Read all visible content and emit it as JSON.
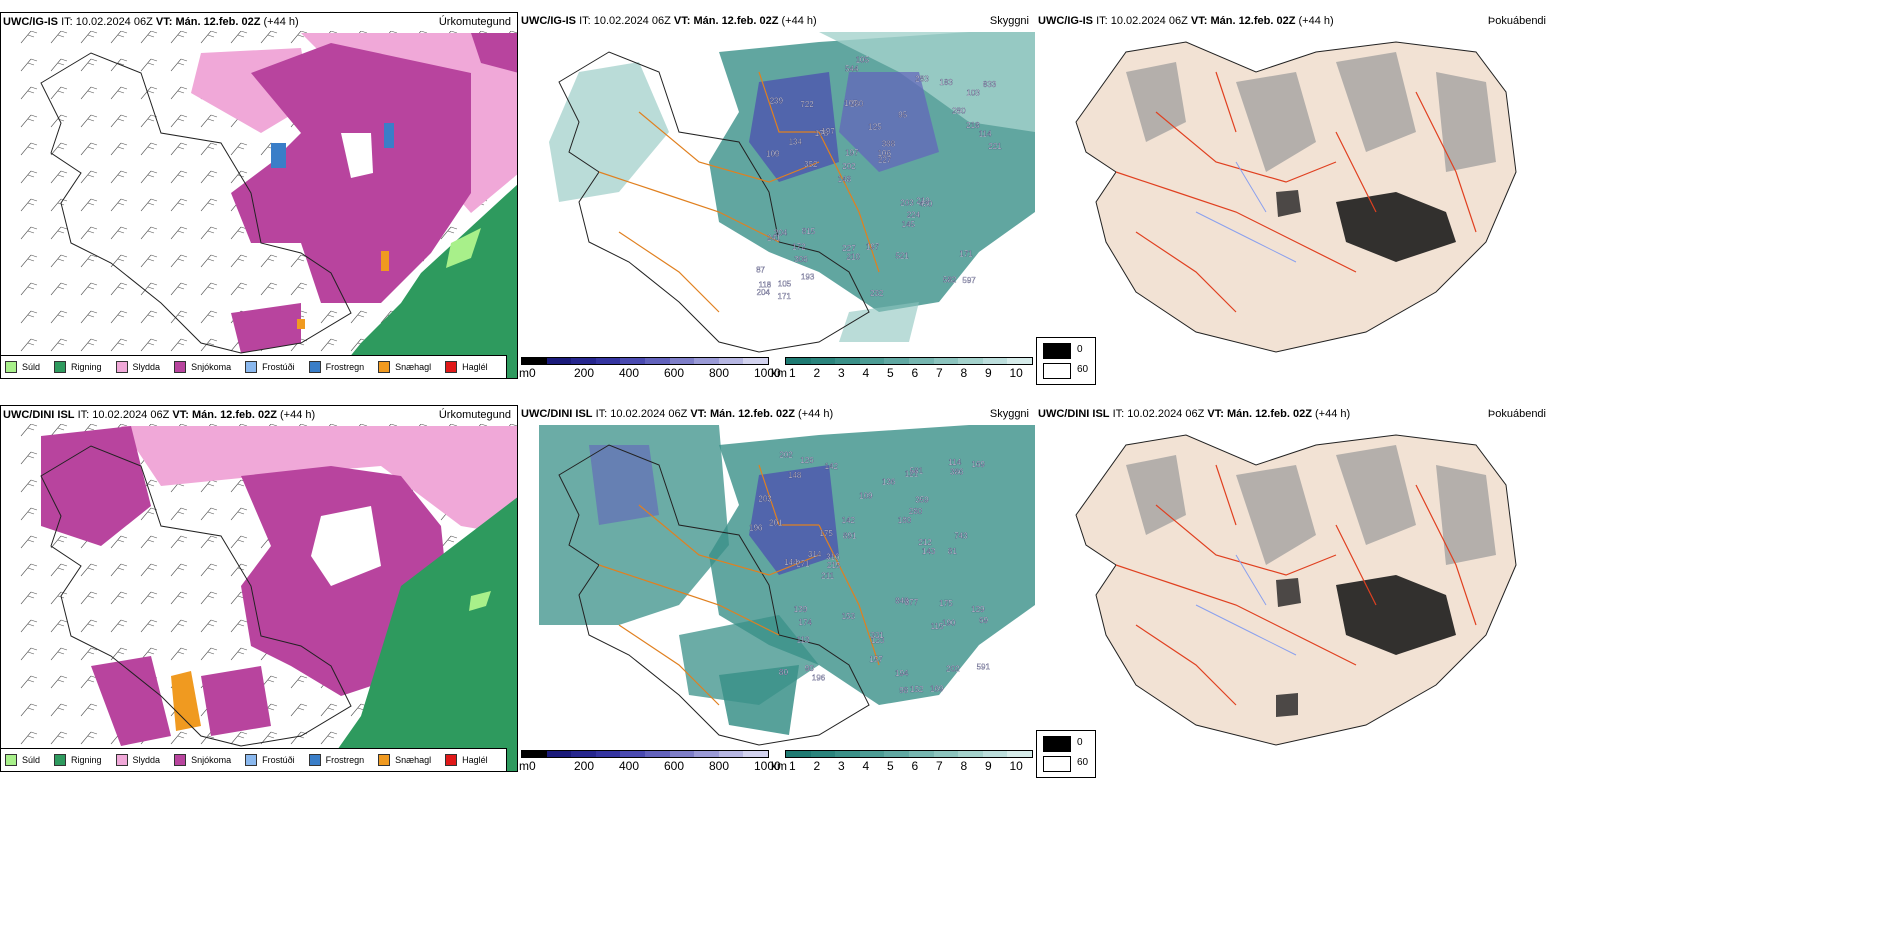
{
  "rows": [
    {
      "model": "UWC/IG-IS",
      "it_label": "IT:",
      "it_value": "10.02.2024 06Z",
      "vt_label": "VT:",
      "vt_value": "Mán. 12.feb. 02Z",
      "lead": "(+44 h)"
    },
    {
      "model": "UWC/DINI ISL",
      "it_label": "IT:",
      "it_value": "10.02.2024 06Z",
      "vt_label": "VT:",
      "vt_value": "Mán. 12.feb. 02Z",
      "lead": "(+44 h)"
    }
  ],
  "panels": {
    "precip": {
      "title": "Úrkomutegund",
      "legend": [
        {
          "label": "Súld",
          "color": "#a8f08a"
        },
        {
          "label": "Rigning",
          "color": "#2e9a5e"
        },
        {
          "label": "Slydda",
          "color": "#f0a8d8"
        },
        {
          "label": "Snjókoma",
          "color": "#b8449e"
        },
        {
          "label": "Frostúði",
          "color": "#8ab8ee"
        },
        {
          "label": "Frostregn",
          "color": "#3a7ec8"
        },
        {
          "label": "Snæhagl",
          "color": "#f09a20"
        },
        {
          "label": "Haglél",
          "color": "#e01818"
        }
      ]
    },
    "visibility": {
      "title": "Skyggni",
      "unit_m": "m",
      "unit_km": "km",
      "m_ticks": [
        "0",
        "200",
        "400",
        "600",
        "800",
        "1000"
      ],
      "km_ticks": [
        "1",
        "2",
        "3",
        "4",
        "5",
        "6",
        "7",
        "8",
        "9",
        "10"
      ],
      "m_colors": [
        "#000000",
        "#1a1a7a",
        "#26268e",
        "#3434a0",
        "#4a4ab0",
        "#6262bc",
        "#7e7ec8",
        "#9a9ad6",
        "#b6b6e2",
        "#d2d2ee"
      ],
      "km_colors": [
        "#1e7a72",
        "#2a847c",
        "#3a9088",
        "#4c9c94",
        "#60a8a2",
        "#76b6b0",
        "#8cc4be",
        "#a4d2cc",
        "#bcdedc",
        "#d6ecea"
      ],
      "labels_top": [
        "597",
        "109",
        "103",
        "148",
        "95",
        "105",
        "107",
        "125",
        "204",
        "197",
        "87",
        "306",
        "280",
        "388",
        "430",
        "239",
        "544",
        "221",
        "203",
        "218",
        "202",
        "227",
        "197",
        "722",
        "283",
        "815",
        "582",
        "171",
        "219",
        "232",
        "178",
        "134",
        "145",
        "193",
        "114",
        "106",
        "118",
        "210",
        "227",
        "241",
        "280",
        "833",
        "224",
        "521",
        "172",
        "171",
        "204",
        "197",
        "183",
        "105",
        "352"
      ],
      "labels_bottom": [
        "129",
        "169",
        "123",
        "80",
        "331",
        "175",
        "142",
        "359",
        "98",
        "81",
        "377",
        "386",
        "196",
        "212",
        "196",
        "148",
        "113",
        "90",
        "121",
        "109",
        "201",
        "175",
        "202",
        "144",
        "169",
        "180",
        "115",
        "153",
        "139",
        "314",
        "157",
        "743",
        "591",
        "194",
        "69",
        "271",
        "203",
        "114",
        "215",
        "202",
        "190",
        "280",
        "174",
        "126",
        "136",
        "848",
        "891",
        "316",
        "581",
        "152",
        "211",
        "143",
        "142"
      ]
    },
    "fog": {
      "title": "Þokuábendi",
      "values": [
        "0",
        "60"
      ],
      "colors": [
        "#000000",
        "#ffffff"
      ]
    }
  }
}
